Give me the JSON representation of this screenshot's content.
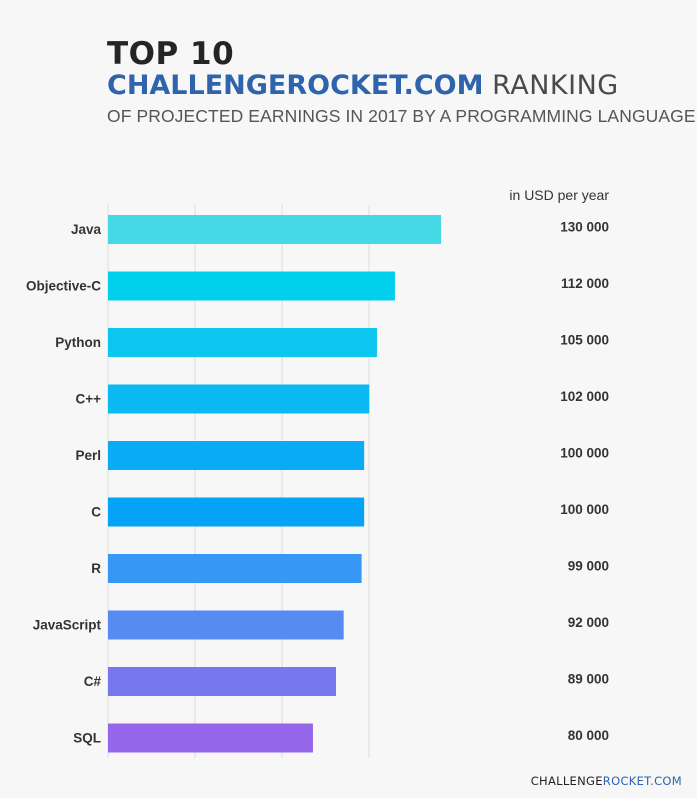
{
  "title": {
    "line1": "TOP 10",
    "brand": "CHALLENGEROCKET.COM",
    "rank": "RANKING",
    "subtitle": "OF PROJECTED EARNINGS IN 2017 BY A PROGRAMMING LANGUAGE"
  },
  "unit_label": "in USD per year",
  "footer": {
    "part1": "CHALLENGE",
    "part2": "ROCKET.COM"
  },
  "chart_data": {
    "type": "bar",
    "orientation": "horizontal",
    "categories": [
      "Java",
      "Objective-C",
      "Python",
      "C++",
      "Perl",
      "C",
      "R",
      "JavaScript",
      "C#",
      "SQL"
    ],
    "values": [
      130000,
      112000,
      105000,
      102000,
      100000,
      100000,
      99000,
      92000,
      89000,
      80000
    ],
    "value_labels": [
      "130 000",
      "112 000",
      "105 000",
      "102 000",
      "100 000",
      "100 000",
      "99 000",
      "92 000",
      "89 000",
      "80 000"
    ],
    "unit": "USD per year",
    "xlim": [
      0,
      130000
    ],
    "grid": true,
    "colors": [
      "#45d9e6",
      "#00d0ec",
      "#0cc6ef",
      "#0bbaf2",
      "#08abf4",
      "#05a2f6",
      "#3797f4",
      "#568cf2",
      "#7778ee",
      "#9566e9"
    ]
  }
}
